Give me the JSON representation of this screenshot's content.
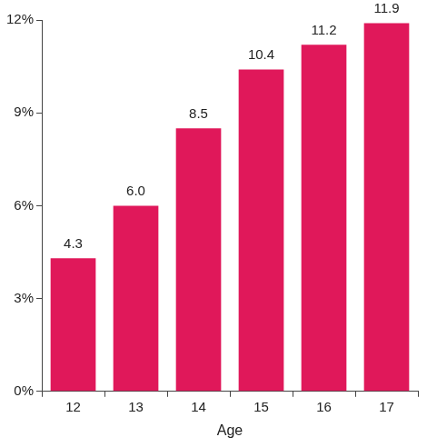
{
  "chart_data": {
    "type": "bar",
    "x_label": "Age",
    "categories": [
      "12",
      "13",
      "14",
      "15",
      "16",
      "17"
    ],
    "values": [
      4.3,
      6.0,
      8.5,
      10.4,
      11.2,
      11.9
    ],
    "value_labels": [
      "4.3",
      "6.0",
      "8.5",
      "10.4",
      "11.2",
      "11.9"
    ],
    "color": "#e0185a",
    "ylim": [
      0,
      12
    ],
    "yticks": [
      {
        "value": 0,
        "label": "0%"
      },
      {
        "value": 3,
        "label": "3%"
      },
      {
        "value": 6,
        "label": "6%"
      },
      {
        "value": 9,
        "label": "9%"
      },
      {
        "value": 12,
        "label": "12%"
      }
    ],
    "grid": false,
    "data_labels": true
  }
}
